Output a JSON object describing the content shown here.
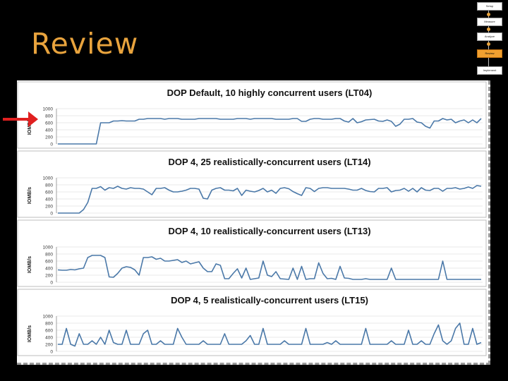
{
  "slide": {
    "title": "Review",
    "colors": {
      "title": "#e8a33d",
      "line": "#4a78a8",
      "active_nav": "#f0a030"
    }
  },
  "nav": {
    "items": [
      {
        "label": "Setup",
        "active": false
      },
      {
        "label": "Measure",
        "active": false
      },
      {
        "label": "Analyze",
        "active": false
      },
      {
        "label": "Review",
        "active": true
      },
      {
        "label": "Implement",
        "active": false
      }
    ]
  },
  "chart_data": [
    {
      "type": "line",
      "title": "DOP Default, 10 highly concurrent users (LT04)",
      "ylabel": "IOMB/s",
      "yticks": [
        1000,
        800,
        600,
        400,
        200,
        0
      ],
      "ylim": [
        0,
        1000
      ],
      "values": [
        0,
        0,
        0,
        0,
        0,
        0,
        0,
        0,
        0,
        0,
        600,
        600,
        600,
        650,
        650,
        660,
        650,
        650,
        650,
        700,
        700,
        720,
        720,
        720,
        720,
        700,
        720,
        720,
        720,
        700,
        700,
        700,
        700,
        720,
        720,
        720,
        720,
        720,
        700,
        700,
        700,
        700,
        720,
        720,
        720,
        700,
        720,
        720,
        720,
        720,
        720,
        700,
        700,
        700,
        700,
        720,
        720,
        640,
        640,
        700,
        720,
        720,
        700,
        700,
        700,
        720,
        720,
        650,
        620,
        720,
        600,
        630,
        680,
        690,
        700,
        650,
        640,
        680,
        640,
        500,
        560,
        700,
        700,
        720,
        620,
        600,
        500,
        450,
        650,
        650,
        720,
        680,
        700,
        600,
        650,
        680,
        600,
        680,
        600,
        720
      ]
    },
    {
      "type": "line",
      "title": "DOP 4, 25 realistically-concurrent users (LT14)",
      "ylabel": "IOMB/s",
      "yticks": [
        1000,
        800,
        600,
        400,
        200,
        0
      ],
      "ylim": [
        0,
        1000
      ],
      "values": [
        0,
        0,
        0,
        0,
        0,
        0,
        100,
        300,
        700,
        700,
        750,
        650,
        720,
        700,
        760,
        700,
        680,
        720,
        700,
        700,
        680,
        600,
        520,
        700,
        700,
        720,
        650,
        600,
        600,
        620,
        650,
        700,
        700,
        680,
        420,
        400,
        650,
        700,
        720,
        650,
        650,
        630,
        700,
        500,
        650,
        620,
        600,
        640,
        700,
        600,
        650,
        560,
        700,
        720,
        690,
        610,
        550,
        500,
        720,
        700,
        610,
        700,
        720,
        720,
        700,
        700,
        700,
        700,
        680,
        650,
        650,
        700,
        640,
        610,
        600,
        700,
        700,
        720,
        600,
        640,
        650,
        700,
        620,
        700,
        600,
        720,
        650,
        640,
        700,
        700,
        620,
        700,
        700,
        720,
        680,
        700,
        740,
        700,
        780,
        760
      ]
    },
    {
      "type": "line",
      "title": "DOP 4, 10 realistically-concurrent users (LT13)",
      "ylabel": "IOMB/s",
      "yticks": [
        1000,
        800,
        600,
        400,
        200,
        0
      ],
      "ylim": [
        0,
        1000
      ],
      "values": [
        350,
        340,
        340,
        360,
        350,
        380,
        400,
        700,
        760,
        760,
        760,
        700,
        150,
        140,
        250,
        400,
        440,
        420,
        350,
        200,
        700,
        700,
        720,
        650,
        680,
        600,
        600,
        620,
        640,
        560,
        600,
        520,
        550,
        580,
        400,
        300,
        300,
        520,
        480,
        100,
        100,
        250,
        380,
        120,
        400,
        80,
        100,
        120,
        600,
        200,
        160,
        300,
        100,
        90,
        80,
        400,
        80,
        450,
        80,
        100,
        100,
        550,
        250,
        100,
        110,
        80,
        450,
        120,
        110,
        80,
        80,
        80,
        100,
        80,
        80,
        80,
        80,
        80,
        400,
        80,
        80,
        80,
        80,
        80,
        80,
        80,
        80,
        80,
        80,
        80,
        600,
        80,
        80,
        80,
        80,
        80,
        80,
        80,
        80,
        80
      ]
    },
    {
      "type": "line",
      "title": "DOP 4, 5 realistically-concurrent users (LT15)",
      "ylabel": "IOMB/s",
      "yticks": [
        1000,
        800,
        600,
        400,
        200,
        0
      ],
      "ylim": [
        0,
        1000
      ],
      "values": [
        200,
        200,
        650,
        200,
        150,
        500,
        200,
        200,
        300,
        200,
        400,
        200,
        600,
        250,
        200,
        200,
        600,
        200,
        200,
        200,
        500,
        600,
        200,
        200,
        300,
        200,
        200,
        200,
        650,
        400,
        200,
        200,
        200,
        200,
        300,
        200,
        200,
        200,
        200,
        500,
        200,
        200,
        200,
        200,
        300,
        450,
        200,
        200,
        650,
        200,
        200,
        200,
        200,
        300,
        200,
        200,
        200,
        200,
        650,
        200,
        200,
        200,
        200,
        250,
        200,
        300,
        200,
        200,
        200,
        200,
        200,
        200,
        650,
        200,
        200,
        200,
        200,
        200,
        300,
        200,
        200,
        200,
        600,
        200,
        200,
        300,
        200,
        200,
        500,
        750,
        300,
        200,
        300,
        650,
        800,
        200,
        200,
        650,
        200,
        250
      ]
    }
  ]
}
